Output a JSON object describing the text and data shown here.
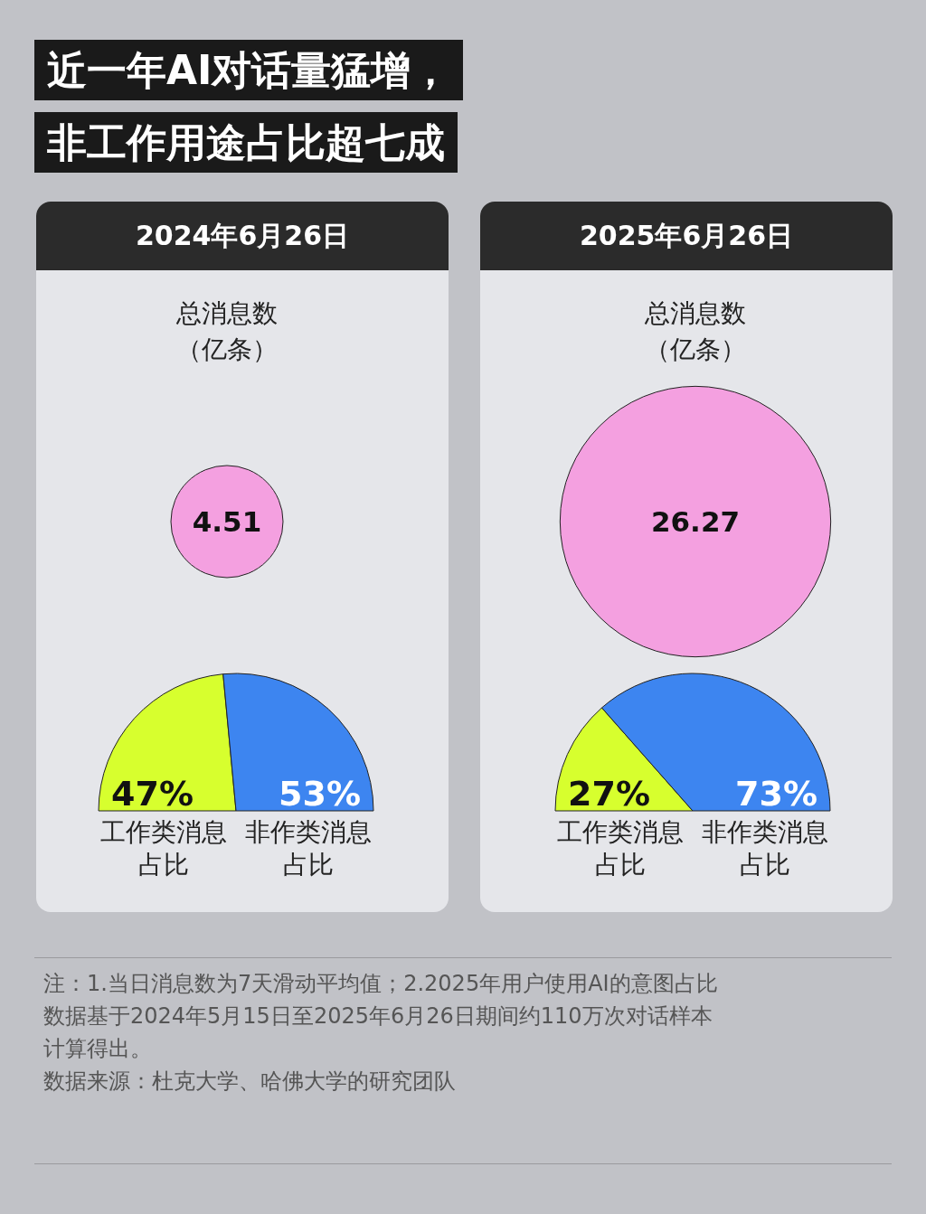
{
  "chart_data": [
    {
      "type": "other",
      "title": "近一年AI对话量猛增，非工作用途占比超七成",
      "annotations": [
        "注：1.当日消息数为7天滑动平均值；2.2025年用户使用AI的意图占比数据基于2024年5月15日至2025年6月26日期间约110万次对话样本计算得出。",
        "数据来源：杜克大学、哈佛大学的研究团队"
      ]
    },
    {
      "type": "other",
      "title": "2024年6月26日",
      "subtitle": "总消息数（亿条）",
      "values": [
        4.51
      ],
      "colors": [
        "#f4a0e0"
      ],
      "data_labels": true
    },
    {
      "type": "pie",
      "categories": [
        "工作类消息占比",
        "非作类消息占比"
      ],
      "values": [
        47,
        53
      ],
      "colors": [
        "#d7ff2e",
        "#3d85f0"
      ],
      "value_labels": [
        "47%",
        "53%"
      ]
    },
    {
      "type": "other",
      "title": "2025年6月26日",
      "subtitle": "总消息数（亿条）",
      "values": [
        26.27
      ],
      "colors": [
        "#f4a0e0"
      ],
      "data_labels": true
    },
    {
      "type": "pie",
      "categories": [
        "工作类消息占比",
        "非作类消息占比"
      ],
      "values": [
        27,
        73
      ],
      "colors": [
        "#d7ff2e",
        "#3d85f0"
      ],
      "value_labels": [
        "27%",
        "73%"
      ]
    }
  ]
}
